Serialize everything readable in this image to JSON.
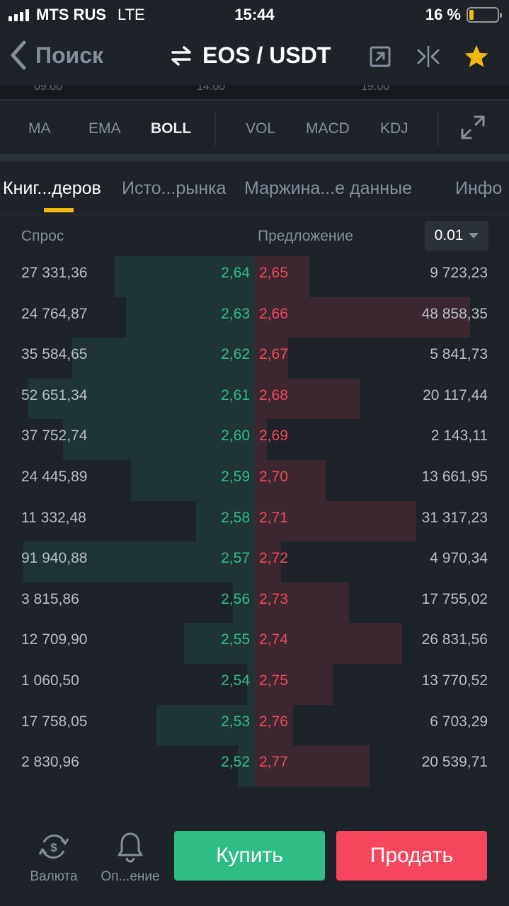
{
  "status_bar": {
    "carrier": "MTS RUS",
    "network": "LTE",
    "time": "15:44",
    "battery": "16 %",
    "battery_level": 0.16
  },
  "nav": {
    "back_label": "Поиск",
    "pair": "EOS / USDT",
    "icons": [
      "share-icon",
      "compare-icon",
      "favorite-star-icon"
    ]
  },
  "chart_axis": [
    "09:00",
    "14:00",
    "19:00"
  ],
  "indicators": {
    "items": [
      "MA",
      "EMA",
      "BOLL",
      "VOL",
      "MACD",
      "KDJ"
    ],
    "active": "BOLL"
  },
  "tabs": {
    "items": [
      "Книг...деров",
      "Исто...рынка",
      "Маржина...е данные",
      "Инфо"
    ],
    "active": 0
  },
  "orderbook": {
    "bid_header": "Спрос",
    "ask_header": "Предложение",
    "precision": "0.01",
    "accent": {
      "bid": "#2ebd85",
      "ask": "#f6465d"
    },
    "rows": [
      {
        "bid_qty": "27 331,36",
        "bid_price": "2,64",
        "ask_price": "2,65",
        "ask_qty": "9 723,23",
        "bid_depth": 0.6,
        "ask_depth": 0.23
      },
      {
        "bid_qty": "24 764,87",
        "bid_price": "2,63",
        "ask_price": "2,66",
        "ask_qty": "48 858,35",
        "bid_depth": 0.55,
        "ask_depth": 0.92
      },
      {
        "bid_qty": "35 584,65",
        "bid_price": "2,62",
        "ask_price": "2,67",
        "ask_qty": "5 841,73",
        "bid_depth": 0.78,
        "ask_depth": 0.14
      },
      {
        "bid_qty": "52 651,34",
        "bid_price": "2,61",
        "ask_price": "2,68",
        "ask_qty": "20 117,44",
        "bid_depth": 0.97,
        "ask_depth": 0.45
      },
      {
        "bid_qty": "37 752,74",
        "bid_price": "2,60",
        "ask_price": "2,69",
        "ask_qty": "2 143,11",
        "bid_depth": 0.82,
        "ask_depth": 0.05
      },
      {
        "bid_qty": "24 445,89",
        "bid_price": "2,59",
        "ask_price": "2,70",
        "ask_qty": "13 661,95",
        "bid_depth": 0.53,
        "ask_depth": 0.3
      },
      {
        "bid_qty": "11 332,48",
        "bid_price": "2,58",
        "ask_price": "2,71",
        "ask_qty": "31 317,23",
        "bid_depth": 0.25,
        "ask_depth": 0.69
      },
      {
        "bid_qty": "91 940,88",
        "bid_price": "2,57",
        "ask_price": "2,72",
        "ask_qty": "4 970,34",
        "bid_depth": 0.99,
        "ask_depth": 0.11
      },
      {
        "bid_qty": "3 815,86",
        "bid_price": "2,56",
        "ask_price": "2,73",
        "ask_qty": "17 755,02",
        "bid_depth": 0.09,
        "ask_depth": 0.4
      },
      {
        "bid_qty": "12 709,90",
        "bid_price": "2,55",
        "ask_price": "2,74",
        "ask_qty": "26 831,56",
        "bid_depth": 0.3,
        "ask_depth": 0.63
      },
      {
        "bid_qty": "1 060,50",
        "bid_price": "2,54",
        "ask_price": "2,75",
        "ask_qty": "13 770,52",
        "bid_depth": 0.03,
        "ask_depth": 0.33
      },
      {
        "bid_qty": "17 758,05",
        "bid_price": "2,53",
        "ask_price": "2,76",
        "ask_qty": "6 703,29",
        "bid_depth": 0.42,
        "ask_depth": 0.16
      },
      {
        "bid_qty": "2 830,96",
        "bid_price": "2,52",
        "ask_price": "2,77",
        "ask_qty": "20 539,71",
        "bid_depth": 0.07,
        "ask_depth": 0.49
      }
    ]
  },
  "bottom": {
    "currency_label": "Валюта",
    "alert_label": "Оп...ение",
    "buy_label": "Купить",
    "sell_label": "Продать"
  }
}
